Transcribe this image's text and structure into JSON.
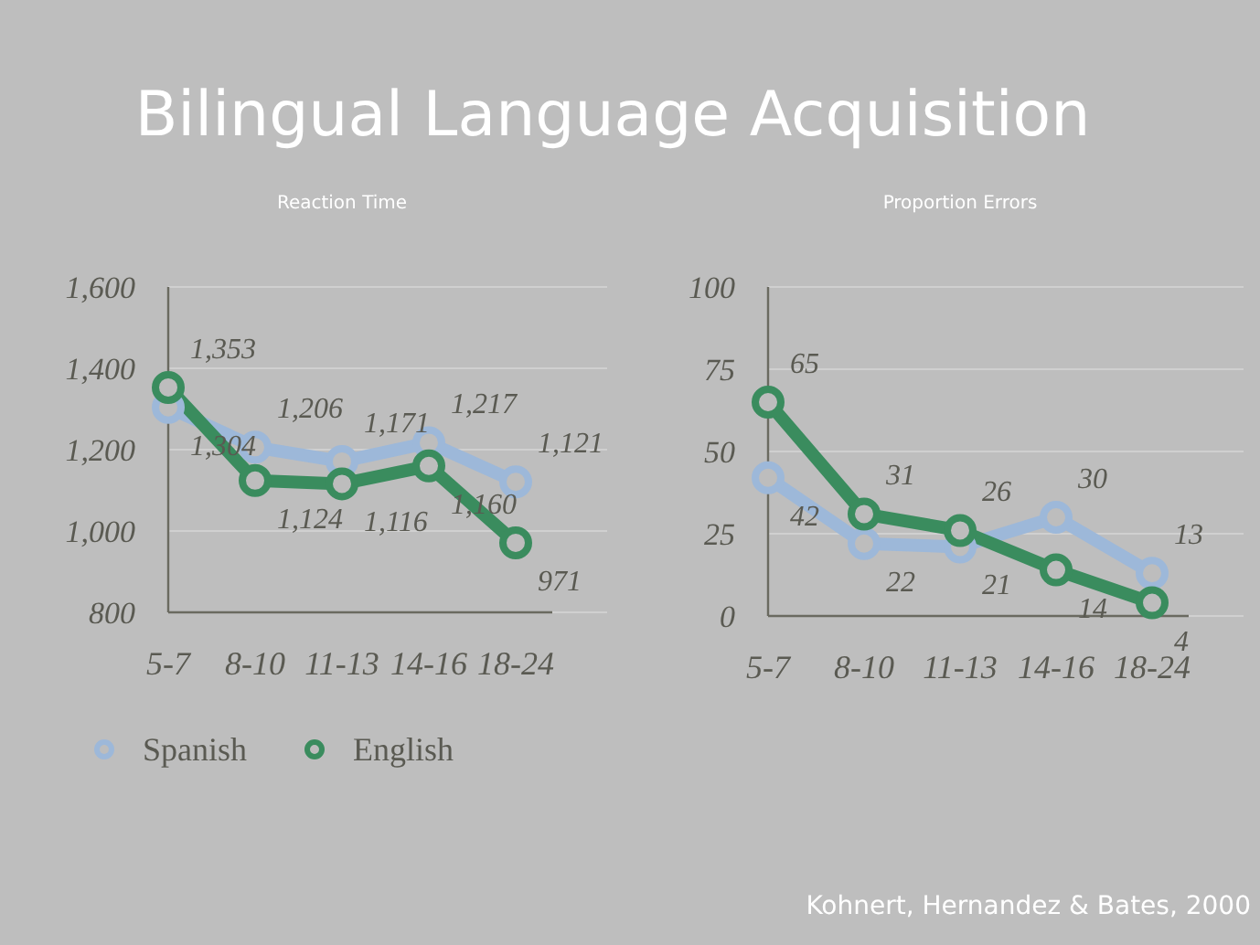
{
  "chart_data": [
    {
      "type": "other",
      "title": "Bilingual Language Acquisition",
      "annotations": [
        "Kohnert, Hernandez & Bates, 2000"
      ]
    },
    {
      "type": "line",
      "title": "Reaction Time",
      "categories": [
        "5-7",
        "8-10",
        "11-13",
        "14-16",
        "18-24"
      ],
      "series": [
        {
          "name": "Spanish",
          "color": "#9db8d9",
          "values": [
            1304,
            1206,
            1171,
            1217,
            1121
          ],
          "value_labels": [
            "1,304",
            "1,206",
            "1,171",
            "1,217",
            "1,121"
          ]
        },
        {
          "name": "English",
          "color": "#3a8c5e",
          "values": [
            1353,
            1124,
            1116,
            1160,
            971
          ],
          "value_labels": [
            "1,353",
            "1,124",
            "1,116",
            "1,160",
            "971"
          ]
        }
      ],
      "ylim": [
        800,
        1600
      ],
      "yticks": [
        {
          "value": 800,
          "label": "800"
        },
        {
          "value": 1000,
          "label": "1,000"
        },
        {
          "value": 1200,
          "label": "1,200"
        },
        {
          "value": 1400,
          "label": "1,400"
        },
        {
          "value": 1600,
          "label": "1,600"
        }
      ],
      "grid": "y",
      "legend": "bottom",
      "marker": "circle"
    },
    {
      "type": "line",
      "title": "Proportion Errors",
      "categories": [
        "5-7",
        "8-10",
        "11-13",
        "14-16",
        "18-24"
      ],
      "series": [
        {
          "color": "#9db8d9",
          "values": [
            42,
            22,
            21,
            30,
            13
          ]
        },
        {
          "color": "#3a8c5e",
          "values": [
            65,
            31,
            26,
            14,
            4
          ]
        }
      ],
      "ylim": [
        0,
        100
      ],
      "yticks": [
        0,
        25,
        50,
        75,
        100
      ],
      "grid": "y",
      "legend": false,
      "marker": "circle",
      "data_labels": true
    }
  ]
}
